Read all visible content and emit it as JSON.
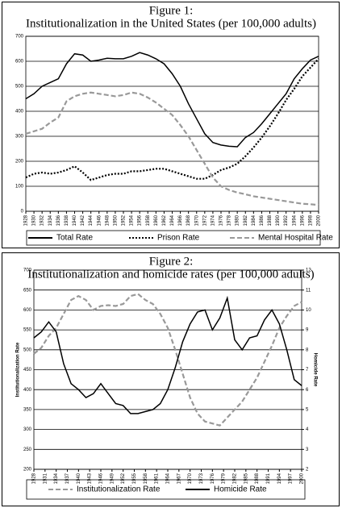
{
  "chart_data": [
    {
      "type": "line",
      "title": "Figure 1:",
      "subtitle": "Institutionalization in the United States (per 100,000 adults)",
      "x": [
        1928,
        1930,
        1932,
        1934,
        1936,
        1938,
        1940,
        1942,
        1944,
        1946,
        1948,
        1950,
        1952,
        1954,
        1956,
        1958,
        1960,
        1962,
        1964,
        1966,
        1968,
        1970,
        1972,
        1974,
        1976,
        1978,
        1980,
        1982,
        1984,
        1986,
        1988,
        1990,
        1992,
        1994,
        1996,
        1998,
        2000
      ],
      "series": [
        {
          "name": "Total Rate",
          "color": "#000000",
          "dash": "solid",
          "values": [
            450,
            470,
            500,
            515,
            530,
            590,
            630,
            625,
            600,
            605,
            612,
            610,
            610,
            620,
            635,
            625,
            610,
            590,
            550,
            500,
            430,
            370,
            310,
            275,
            265,
            260,
            258,
            295,
            315,
            350,
            390,
            430,
            470,
            530,
            570,
            605,
            620
          ]
        },
        {
          "name": "Prison Rate",
          "color": "#000000",
          "dash": "dotted",
          "values": [
            135,
            150,
            155,
            150,
            155,
            165,
            180,
            155,
            125,
            135,
            145,
            150,
            150,
            160,
            160,
            165,
            170,
            170,
            160,
            150,
            140,
            130,
            130,
            145,
            165,
            175,
            190,
            220,
            255,
            295,
            340,
            390,
            445,
            490,
            540,
            575,
            610
          ]
        },
        {
          "name": "Mental Hospital Rate",
          "color": "#999999",
          "dash": "dashed",
          "values": [
            310,
            320,
            330,
            355,
            375,
            440,
            460,
            470,
            475,
            470,
            465,
            460,
            465,
            475,
            470,
            455,
            435,
            410,
            385,
            345,
            300,
            245,
            190,
            135,
            100,
            85,
            75,
            68,
            60,
            55,
            50,
            45,
            40,
            35,
            30,
            28,
            25
          ]
        }
      ],
      "xlim": [
        1928,
        2000
      ],
      "xticks": [
        1928,
        1930,
        1932,
        1934,
        1936,
        1938,
        1940,
        1942,
        1944,
        1946,
        1948,
        1950,
        1952,
        1954,
        1956,
        1958,
        1960,
        1962,
        1964,
        1966,
        1968,
        1970,
        1972,
        1974,
        1976,
        1978,
        1980,
        1982,
        1984,
        1986,
        1988,
        1990,
        1992,
        1994,
        1996,
        1998,
        2000
      ],
      "ylim": [
        0,
        700
      ],
      "yticks": [
        0,
        100,
        200,
        300,
        400,
        500,
        600,
        700
      ],
      "grid": true,
      "legend": "bottom"
    },
    {
      "type": "line",
      "title": "Figure 2:",
      "subtitle": "Institutionalization and homicide rates (per 100,000 adults)",
      "y_label": "Institutionalization Rate",
      "y2_label": "Homicide Rate",
      "x": [
        1928,
        1930,
        1932,
        1934,
        1936,
        1938,
        1940,
        1942,
        1944,
        1946,
        1948,
        1950,
        1952,
        1954,
        1956,
        1958,
        1960,
        1962,
        1964,
        1966,
        1968,
        1970,
        1972,
        1974,
        1976,
        1978,
        1980,
        1982,
        1984,
        1986,
        1988,
        1990,
        1992,
        1994,
        1996,
        1998,
        2000
      ],
      "series": [
        {
          "name": "Institutionalization Rate",
          "color": "#999999",
          "dash": "dashed",
          "values": [
            490,
            505,
            535,
            555,
            590,
            625,
            635,
            625,
            600,
            610,
            612,
            610,
            615,
            635,
            640,
            625,
            615,
            590,
            555,
            500,
            440,
            380,
            340,
            320,
            315,
            310,
            330,
            350,
            370,
            400,
            430,
            470,
            510,
            555,
            585,
            610,
            620
          ]
        },
        {
          "name": "Homicide Rate",
          "color": "#000000",
          "dash": "solid",
          "axis": "y2",
          "values": [
            8.6,
            8.9,
            9.4,
            8.9,
            7.3,
            6.3,
            6.0,
            5.6,
            5.8,
            6.3,
            5.8,
            5.3,
            5.2,
            4.8,
            4.8,
            4.9,
            5.0,
            5.3,
            6.0,
            7.1,
            8.4,
            9.3,
            9.9,
            10.0,
            9.0,
            9.6,
            10.6,
            8.5,
            8.0,
            8.6,
            8.7,
            9.5,
            10.0,
            9.3,
            8.0,
            6.5,
            6.2
          ]
        }
      ],
      "xlim": [
        1928,
        2000
      ],
      "xticks": [
        1928,
        1931,
        1934,
        1937,
        1940,
        1943,
        1946,
        1949,
        1952,
        1955,
        1958,
        1961,
        1964,
        1967,
        1970,
        1973,
        1976,
        1979,
        1982,
        1985,
        1988,
        1991,
        1994,
        1997,
        2000
      ],
      "ylim": [
        200,
        700
      ],
      "yticks": [
        200,
        250,
        300,
        350,
        400,
        450,
        500,
        550,
        600,
        650,
        700
      ],
      "y2lim": [
        2,
        12
      ],
      "y2ticks": [
        2,
        3,
        4,
        5,
        6,
        7,
        8,
        9,
        10,
        11,
        12
      ],
      "grid": true,
      "legend": "bottom"
    }
  ]
}
